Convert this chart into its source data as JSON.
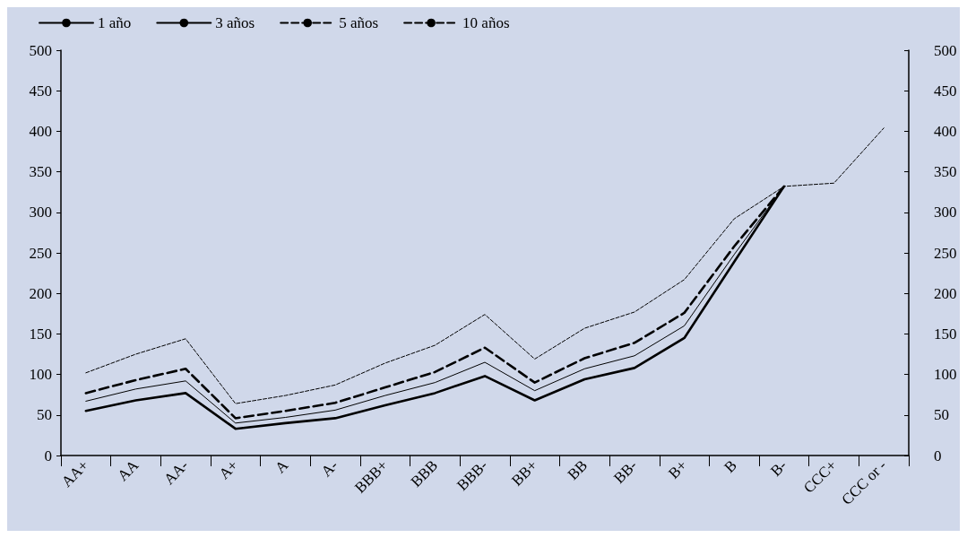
{
  "chart_data": {
    "type": "line",
    "categories": [
      "AA+",
      "AA",
      "AA-",
      "A+",
      "A",
      "A-",
      "BBB+",
      "BBB",
      "BBB-",
      "BB+",
      "BB",
      "BB-",
      "B+",
      "B",
      "B-",
      "CCC+",
      "CCC or -"
    ],
    "series": [
      {
        "name": "1 año",
        "color": "#000000",
        "line_style": "solid",
        "values": [
          55,
          68,
          77,
          33,
          40,
          46,
          62,
          77,
          98,
          68,
          94,
          108,
          145,
          239,
          332,
          null,
          null
        ]
      },
      {
        "name": "3 años",
        "color": "#000000",
        "line_style": "solid",
        "values": [
          67,
          82,
          92,
          40,
          47,
          56,
          74,
          90,
          115,
          80,
          107,
          123,
          160,
          248,
          332,
          null,
          null
        ]
      },
      {
        "name": "5 años",
        "color": "#000000",
        "line_style": "dashed",
        "values": [
          77,
          93,
          107,
          46,
          55,
          65,
          84,
          103,
          133,
          90,
          120,
          139,
          176,
          258,
          332,
          null,
          null
        ]
      },
      {
        "name": "10 años",
        "color": "#000000",
        "line_style": "dashed",
        "values": [
          102,
          125,
          144,
          64,
          74,
          87,
          114,
          136,
          174,
          119,
          157,
          177,
          217,
          292,
          332,
          336,
          404
        ]
      }
    ],
    "ylim": [
      0,
      500
    ],
    "yticks": [
      0,
      50,
      100,
      150,
      200,
      250,
      300,
      350,
      400,
      450,
      500
    ],
    "y2lim": [
      0,
      500
    ],
    "y2ticks": [
      0,
      50,
      100,
      150,
      200,
      250,
      300,
      350,
      400,
      450,
      500
    ],
    "grid": false,
    "legend": "top left",
    "marker": "none"
  }
}
